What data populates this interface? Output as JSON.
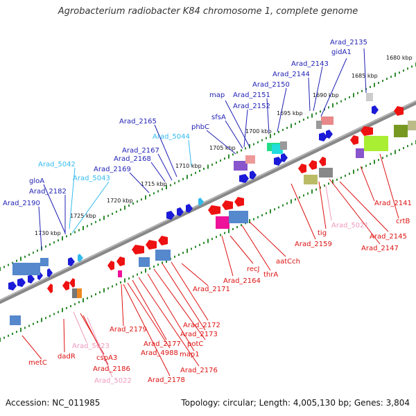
{
  "title": "Agrobacterium radiobacter K84 chromosome 1, complete genome",
  "footer": {
    "accession": "Accession: NC_011985",
    "summary": "Topology: circular; Length: 4,005,130 bp; Genes: 3,804"
  },
  "colors": {
    "plus_label": "#1f1fb4",
    "plus_rna_label": "#33bbee",
    "minus_label": "#dd1111",
    "minus_rna_label": "#ee99bb",
    "backbone": "#888888",
    "tick": "#2c8a2c"
  },
  "kbp_ticks": [
    {
      "label": "1680 kbp",
      "t": 0.0
    },
    {
      "label": "1685 kbp",
      "t": 0.0
    },
    {
      "label": "1690 kbp",
      "t": 0.0
    },
    {
      "label": "1695 kbp",
      "t": 0.0
    },
    {
      "label": "1700 kbp",
      "t": 0.0
    },
    {
      "label": "1705 kbp",
      "t": 0.0
    },
    {
      "label": "1710 kbp",
      "t": 0.0
    },
    {
      "label": "1715 kbp",
      "t": 0.0
    },
    {
      "label": "1720 kbp",
      "t": 0.0
    },
    {
      "label": "1725 kbp",
      "t": 0.0
    },
    {
      "label": "1730 kbp",
      "t": 0.0
    }
  ],
  "plus_genes": [
    {
      "name": "Arad_2135",
      "kind": "gene"
    },
    {
      "name": "gidA1",
      "kind": "gene"
    },
    {
      "name": "Arad_2143",
      "kind": "gene"
    },
    {
      "name": "Arad_2144",
      "kind": "gene"
    },
    {
      "name": "Arad_2150",
      "kind": "gene"
    },
    {
      "name": "Arad_2151",
      "kind": "gene"
    },
    {
      "name": "map",
      "kind": "gene"
    },
    {
      "name": "Arad_2152",
      "kind": "gene"
    },
    {
      "name": "sfsA",
      "kind": "gene"
    },
    {
      "name": "phbC",
      "kind": "gene"
    },
    {
      "name": "Arad_2165",
      "kind": "gene"
    },
    {
      "name": "Arad_5044",
      "kind": "rna"
    },
    {
      "name": "Arad_2167",
      "kind": "gene"
    },
    {
      "name": "Arad_2168",
      "kind": "gene"
    },
    {
      "name": "Arad_2169",
      "kind": "gene"
    },
    {
      "name": "Arad_5042",
      "kind": "rna"
    },
    {
      "name": "Arad_5043",
      "kind": "rna"
    },
    {
      "name": "gloA",
      "kind": "gene"
    },
    {
      "name": "Arad_2182",
      "kind": "gene"
    },
    {
      "name": "Arad_2190",
      "kind": "gene"
    }
  ],
  "minus_genes": [
    {
      "name": "Arad_2141",
      "kind": "gene"
    },
    {
      "name": "crtB",
      "kind": "gene"
    },
    {
      "name": "Arad_2145",
      "kind": "gene"
    },
    {
      "name": "Arad_2147",
      "kind": "gene"
    },
    {
      "name": "tig",
      "kind": "gene"
    },
    {
      "name": "Arad_5021",
      "kind": "rna"
    },
    {
      "name": "Arad_2159",
      "kind": "gene"
    },
    {
      "name": "aatCch",
      "kind": "gene"
    },
    {
      "name": "thrA",
      "kind": "gene"
    },
    {
      "name": "recJ",
      "kind": "gene"
    },
    {
      "name": "Arad_2164",
      "kind": "gene"
    },
    {
      "name": "Arad_2171",
      "kind": "gene"
    },
    {
      "name": "Arad_2172",
      "kind": "gene"
    },
    {
      "name": "Arad_2173",
      "kind": "gene"
    },
    {
      "name": "potC",
      "kind": "gene"
    },
    {
      "name": "map1",
      "kind": "gene"
    },
    {
      "name": "Arad_2176",
      "kind": "gene"
    },
    {
      "name": "Arad_2177",
      "kind": "gene"
    },
    {
      "name": "Arad_4988",
      "kind": "gene"
    },
    {
      "name": "Arad_2179",
      "kind": "gene"
    },
    {
      "name": "Arad_2178",
      "kind": "gene"
    },
    {
      "name": "Arad_5023",
      "kind": "rna"
    },
    {
      "name": "cspA3",
      "kind": "gene"
    },
    {
      "name": "Arad_2186",
      "kind": "gene"
    },
    {
      "name": "Arad_5022",
      "kind": "rna"
    },
    {
      "name": "dadR",
      "kind": "gene"
    },
    {
      "name": "metC",
      "kind": "gene"
    }
  ]
}
